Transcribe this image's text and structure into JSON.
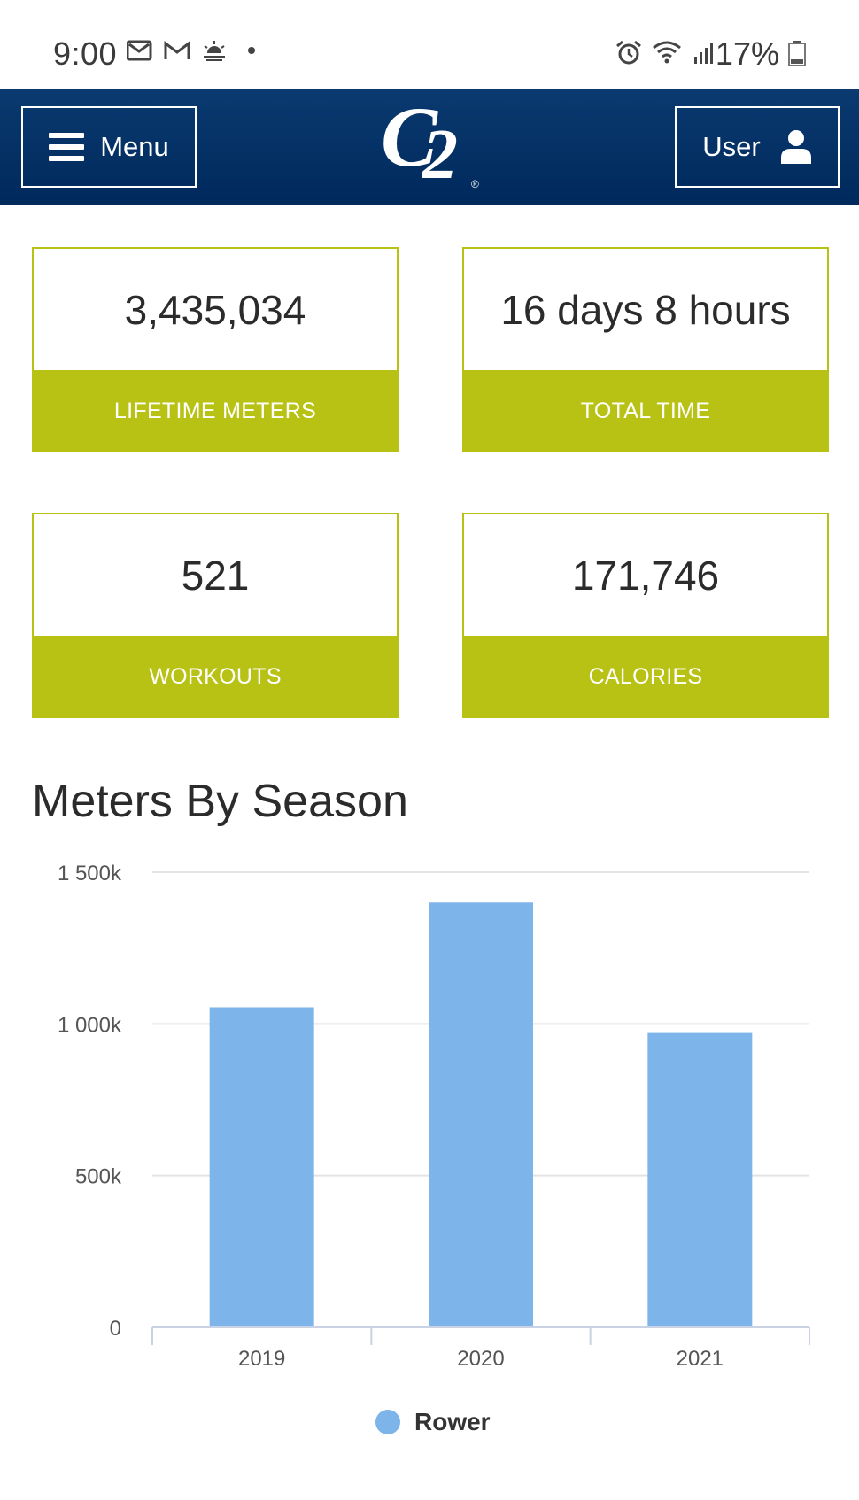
{
  "status_bar": {
    "time": "9:00",
    "battery": "17%",
    "icons_left": [
      "mail-icon",
      "gmail-icon",
      "weather-icon",
      "dot-icon"
    ],
    "icons_right": [
      "alarm-icon",
      "wifi-icon",
      "signal-icon",
      "battery-icon"
    ]
  },
  "header": {
    "menu_label": "Menu",
    "user_label": "User",
    "logo_c": "C",
    "logo_2": "2",
    "logo_reg": "®",
    "bg_color": "#00295c"
  },
  "stats": [
    {
      "value": "3,435,034",
      "label": "LIFETIME METERS"
    },
    {
      "value": "16 days 8 hours",
      "label": "TOTAL TIME"
    },
    {
      "value": "521",
      "label": "WORKOUTS"
    },
    {
      "value": "171,746",
      "label": "CALORIES"
    }
  ],
  "accent_color": "#b8c214",
  "chart_title": "Meters By Season",
  "chart_data": {
    "type": "bar",
    "title": "Meters By Season",
    "categories": [
      "2019",
      "2020",
      "2021"
    ],
    "series": [
      {
        "name": "Rower",
        "values": [
          1055000,
          1400000,
          970000
        ],
        "color": "#7db5ea"
      }
    ],
    "ylim": [
      0,
      1500000
    ],
    "yticks": [
      0,
      500000,
      1000000,
      1500000
    ],
    "ytick_labels": [
      "0",
      "500k",
      "1 000k",
      "1 500k"
    ],
    "grid": true,
    "legend": "bottom-center",
    "xlabel": "",
    "ylabel": ""
  }
}
